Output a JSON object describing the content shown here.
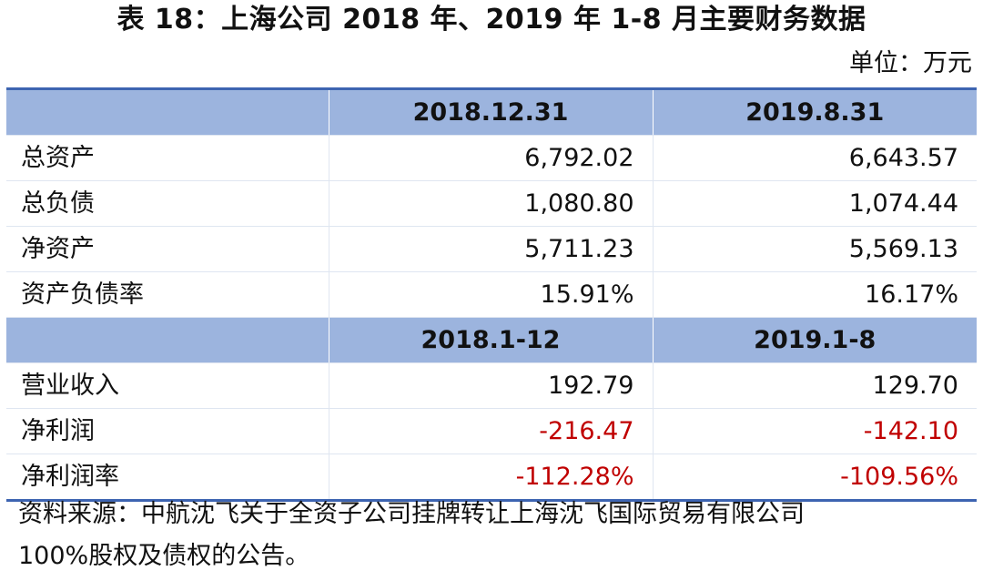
{
  "title": "表 18：上海公司 2018 年、2019 年 1-8 月主要财务数据",
  "unit": "单位：万元",
  "section1": {
    "headers": [
      "2018.12.31",
      "2019.8.31"
    ],
    "rows": [
      {
        "label": "总资产",
        "v1": "6,792.02",
        "v2": "6,643.57"
      },
      {
        "label": "总负债",
        "v1": "1,080.80",
        "v2": "1,074.44"
      },
      {
        "label": "净资产",
        "v1": "5,711.23",
        "v2": "5,569.13"
      },
      {
        "label": "资产负债率",
        "v1": "15.91%",
        "v2": "16.17%"
      }
    ]
  },
  "section2": {
    "headers": [
      "2018.1-12",
      "2019.1-8"
    ],
    "rows": [
      {
        "label": "营业收入",
        "v1": "192.79",
        "v2": "129.70"
      },
      {
        "label": "净利润",
        "v1": "-216.47",
        "v2": "-142.10"
      },
      {
        "label": "净利润率",
        "v1": "-112.28%",
        "v2": "-109.56%"
      }
    ]
  },
  "colors": {
    "header_bg": "#9cb4de",
    "rule": "#3d64b1",
    "negative": "#c00000"
  },
  "source_line1": "资料来源：中航沈飞关于全资子公司挂牌转让上海沈飞国际贸易有限公司",
  "source_line2": "100%股权及债权的公告。"
}
